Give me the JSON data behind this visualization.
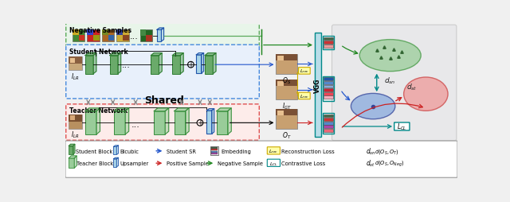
{
  "fig_w": 6.4,
  "fig_h": 2.55,
  "dpi": 100,
  "bg_color": "#f0f0f0",
  "neg_box_color": "#e8f5e9",
  "neg_box_edge": "#5aaa5a",
  "student_box_color": "#e8f0fb",
  "student_box_edge": "#4488dd",
  "teacher_box_color": "#fdecea",
  "teacher_box_edge": "#e05050",
  "student_block_face": "#6aaa6a",
  "student_block_edge": "#2e7d32",
  "teacher_block_face": "#99cc99",
  "teacher_block_edge": "#388e3c",
  "bicubic_face": "#a8d4e8",
  "bicubic_edge": "#2255aa",
  "vgg_face": "#b8dde8",
  "vgg_edge": "#008888",
  "embed_top": [
    "#446644",
    "#cc3333",
    "#ee8888"
  ],
  "embed_mid": [
    "#2255aa",
    "#5588cc",
    "#99bbdd",
    "#cc3333",
    "#ee5555",
    "#ee9999"
  ],
  "embed_bot": [
    "#446644",
    "#cc3333",
    "#5588cc",
    "#9955aa",
    "#ee6666"
  ],
  "ellipse_green_fc": "#99cc99",
  "ellipse_green_ec": "#449944",
  "ellipse_blue_fc": "#88aadd",
  "ellipse_blue_ec": "#334499",
  "ellipse_red_fc": "#ee9999",
  "ellipse_red_ec": "#cc4444",
  "right_bg": "#e8e8ea",
  "arrow_blue": "#2255cc",
  "arrow_red": "#cc2222",
  "arrow_green": "#228822",
  "arrow_cyan": "#008888",
  "arrow_yellow": "#ccaa00",
  "gray_arrow": "#888888",
  "shared_text": "Shared",
  "student_label": "Student Network",
  "teacher_label": "Teacher Network",
  "neg_label": "Negative Samples"
}
